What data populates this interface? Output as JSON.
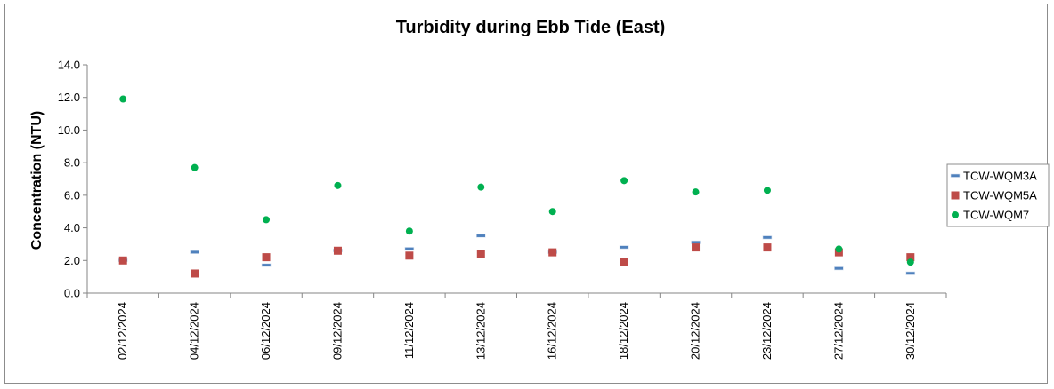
{
  "chart_data": {
    "type": "scatter",
    "title": "Turbidity during Ebb Tide (East)",
    "xlabel": "",
    "ylabel": "Concentration (NTU)",
    "ylim": [
      0,
      14
    ],
    "yticks": [
      "0.0",
      "2.0",
      "4.0",
      "6.0",
      "8.0",
      "10.0",
      "12.0",
      "14.0"
    ],
    "grid": false,
    "legend_position": "right",
    "categories": [
      "02/12/2024",
      "04/12/2024",
      "06/12/2024",
      "09/12/2024",
      "11/12/2024",
      "13/12/2024",
      "16/12/2024",
      "18/12/2024",
      "20/12/2024",
      "23/12/2024",
      "27/12/2024",
      "30/12/2024"
    ],
    "series": [
      {
        "name": "TCW-WQM3A",
        "marker": "dash",
        "color": "#4f81bd",
        "values": [
          2.0,
          2.5,
          1.7,
          2.6,
          2.7,
          3.5,
          2.5,
          2.8,
          3.1,
          3.4,
          1.5,
          1.2
        ]
      },
      {
        "name": "TCW-WQM5A",
        "marker": "square",
        "color": "#be4b48",
        "values": [
          2.0,
          1.2,
          2.2,
          2.6,
          2.3,
          2.4,
          2.5,
          1.9,
          2.8,
          2.8,
          2.5,
          2.2
        ]
      },
      {
        "name": "TCW-WQM7",
        "marker": "circle",
        "color": "#00b050",
        "values": [
          11.9,
          7.7,
          4.5,
          6.6,
          3.8,
          6.5,
          5.0,
          6.9,
          6.2,
          6.3,
          2.7,
          1.9
        ]
      }
    ]
  }
}
